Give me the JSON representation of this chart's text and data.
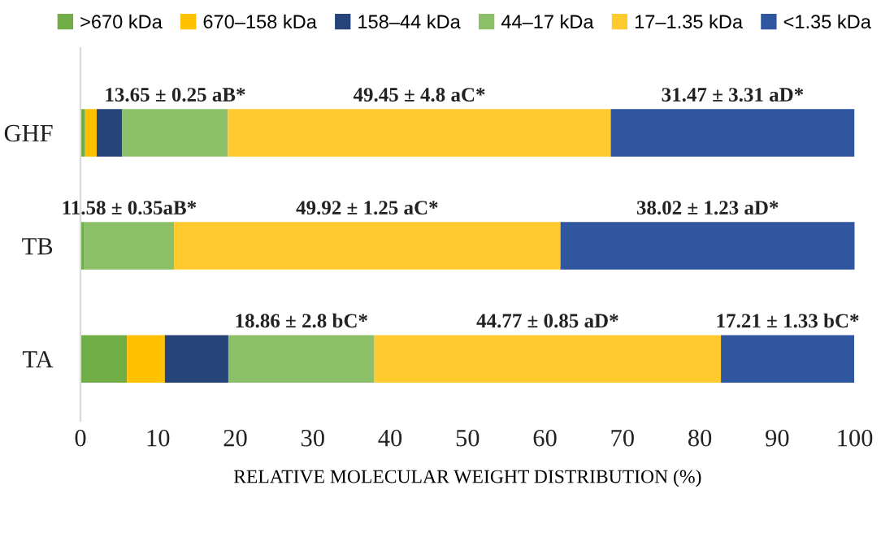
{
  "chart_data": {
    "type": "bar",
    "orientation": "horizontal",
    "stacked": true,
    "xlabel": "RELATIVE MOLECULAR WEIGHT DISTRIBUTION (%)",
    "categories": [
      "GHF",
      "TB",
      "TA"
    ],
    "xlim": [
      0,
      100
    ],
    "xticks": [
      0,
      10,
      20,
      30,
      40,
      50,
      60,
      70,
      80,
      90,
      100
    ],
    "grid": false,
    "legend": "top",
    "series": [
      {
        "name": ">670 kDa",
        "color": "#70ad47",
        "values": [
          0.6,
          0.5,
          6.0
        ]
      },
      {
        "name": "670–158 kDa",
        "color": "#ffc000",
        "values": [
          1.5,
          0,
          4.9
        ]
      },
      {
        "name": "158–44 kDa",
        "color": "#264478",
        "values": [
          3.3,
          0,
          8.2
        ]
      },
      {
        "name": "44–17 kDa",
        "color": "#8cc068",
        "values": [
          13.65,
          11.58,
          18.86
        ],
        "value_labels": [
          "13.65 ± 0.25 aB*",
          "11.58 ± 0.35aB*",
          "18.86 ± 2.8 bC*"
        ]
      },
      {
        "name": "17–1.35 kDa",
        "color": "#ffca2e",
        "values": [
          49.45,
          49.92,
          44.77
        ],
        "value_labels": [
          "49.45 ± 4.8 aC*",
          "49.92 ± 1.25 aC*",
          "44.77 ± 0.85 aD*"
        ]
      },
      {
        "name": "<1.35 kDa",
        "color": "#2f569e",
        "values": [
          31.47,
          38.02,
          17.21
        ],
        "value_labels": [
          "31.47 ± 3.31 aD*",
          "38.02 ± 1.23 aD*",
          "17.21 ± 1.33 bC*"
        ]
      }
    ]
  }
}
